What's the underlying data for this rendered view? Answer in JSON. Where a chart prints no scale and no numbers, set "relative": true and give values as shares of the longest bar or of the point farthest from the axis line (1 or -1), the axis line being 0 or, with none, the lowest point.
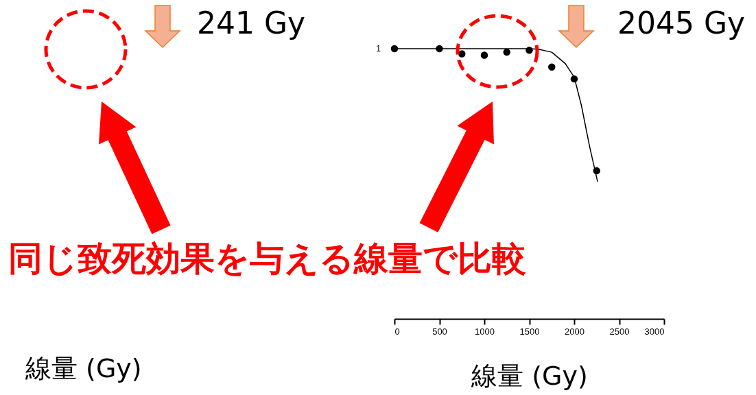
{
  "chart_data": {
    "type": "scatter",
    "relative": true,
    "xlabel": "線量 (Gy)",
    "xlim": [
      0,
      3000
    ],
    "xticks": [
      0,
      500,
      1000,
      1500,
      2000,
      2500,
      3000
    ],
    "grid": false,
    "marker": "circle",
    "series": [
      {
        "color": "#000000",
        "x": [
          0,
          500,
          750,
          1000,
          1250,
          1500,
          1750,
          2000,
          2250
        ],
        "values": [
          1,
          1,
          0.981,
          0.976,
          0.987,
          0.994,
          0.932,
          0.888,
          0.548
        ]
      },
      {
        "type": "line",
        "color": "#000000",
        "marker": "none",
        "x": [
          0,
          500,
          1000,
          1500,
          1600,
          1750,
          1900,
          2000,
          2080,
          2170,
          2260
        ],
        "values": [
          1,
          1,
          1,
          1,
          0.998,
          0.987,
          0.945,
          0.895,
          0.79,
          0.64,
          0.508
        ]
      }
    ],
    "annotations": [
      "1",
      "2045 Gy",
      "241 Gy",
      "線量 (Gy)",
      "同じ致死効果を与える線量で比較"
    ]
  }
}
